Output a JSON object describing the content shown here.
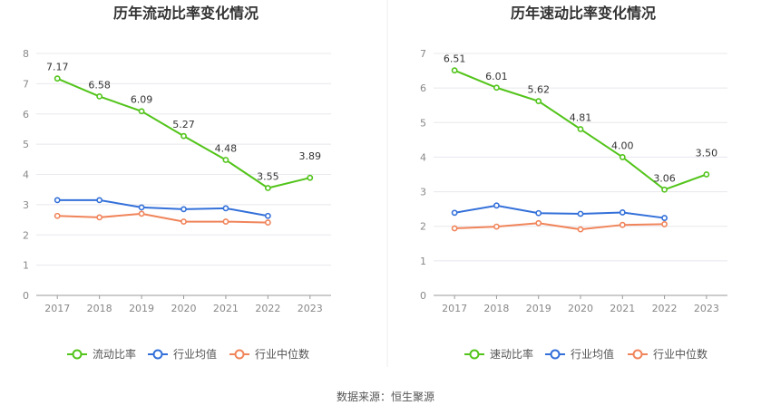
{
  "charts": [
    {
      "title": "历年流动比率变化情况",
      "legend": [
        "流动比率",
        "行业均值",
        "行业中位数"
      ]
    },
    {
      "title": "历年速动比率变化情况",
      "legend": [
        "速动比率",
        "行业均值",
        "行业中位数"
      ]
    }
  ],
  "source": "数据来源：恒生聚源",
  "colors": {
    "main": "#52c41a",
    "avg": "#3370d9",
    "median": "#f0845a",
    "grid": "#e8e8ee",
    "axis": "#999999"
  },
  "chart_data": [
    {
      "type": "line",
      "title": "历年流动比率变化情况",
      "categories": [
        "2017",
        "2018",
        "2019",
        "2020",
        "2021",
        "2022",
        "2023"
      ],
      "ylim": [
        0,
        8
      ],
      "yticks": [
        0,
        1,
        2,
        3,
        4,
        5,
        6,
        7,
        8
      ],
      "grid": true,
      "legend_position": "bottom",
      "series": [
        {
          "name": "流动比率",
          "values": [
            7.17,
            6.58,
            6.09,
            5.27,
            4.48,
            3.55,
            3.89
          ],
          "labels": [
            "7.17",
            "6.58",
            "6.09",
            "5.27",
            "4.48",
            "3.55",
            "3.89"
          ]
        },
        {
          "name": "行业均值",
          "values": [
            3.15,
            3.15,
            2.91,
            2.85,
            2.88,
            2.63,
            null
          ]
        },
        {
          "name": "行业中位数",
          "values": [
            2.63,
            2.58,
            2.7,
            2.44,
            2.44,
            2.41,
            null
          ]
        }
      ]
    },
    {
      "type": "line",
      "title": "历年速动比率变化情况",
      "categories": [
        "2017",
        "2018",
        "2019",
        "2020",
        "2021",
        "2022",
        "2023"
      ],
      "ylim": [
        0,
        7
      ],
      "yticks": [
        0,
        1,
        2,
        3,
        4,
        5,
        6,
        7
      ],
      "grid": true,
      "legend_position": "bottom",
      "series": [
        {
          "name": "速动比率",
          "values": [
            6.51,
            6.01,
            5.62,
            4.81,
            4.0,
            3.06,
            3.5
          ],
          "labels": [
            "6.51",
            "6.01",
            "5.62",
            "4.81",
            "4.00",
            "3.06",
            "3.50"
          ]
        },
        {
          "name": "行业均值",
          "values": [
            2.39,
            2.6,
            2.38,
            2.36,
            2.4,
            2.24,
            null
          ]
        },
        {
          "name": "行业中位数",
          "values": [
            1.94,
            1.99,
            2.09,
            1.91,
            2.04,
            2.06,
            null
          ]
        }
      ]
    }
  ]
}
